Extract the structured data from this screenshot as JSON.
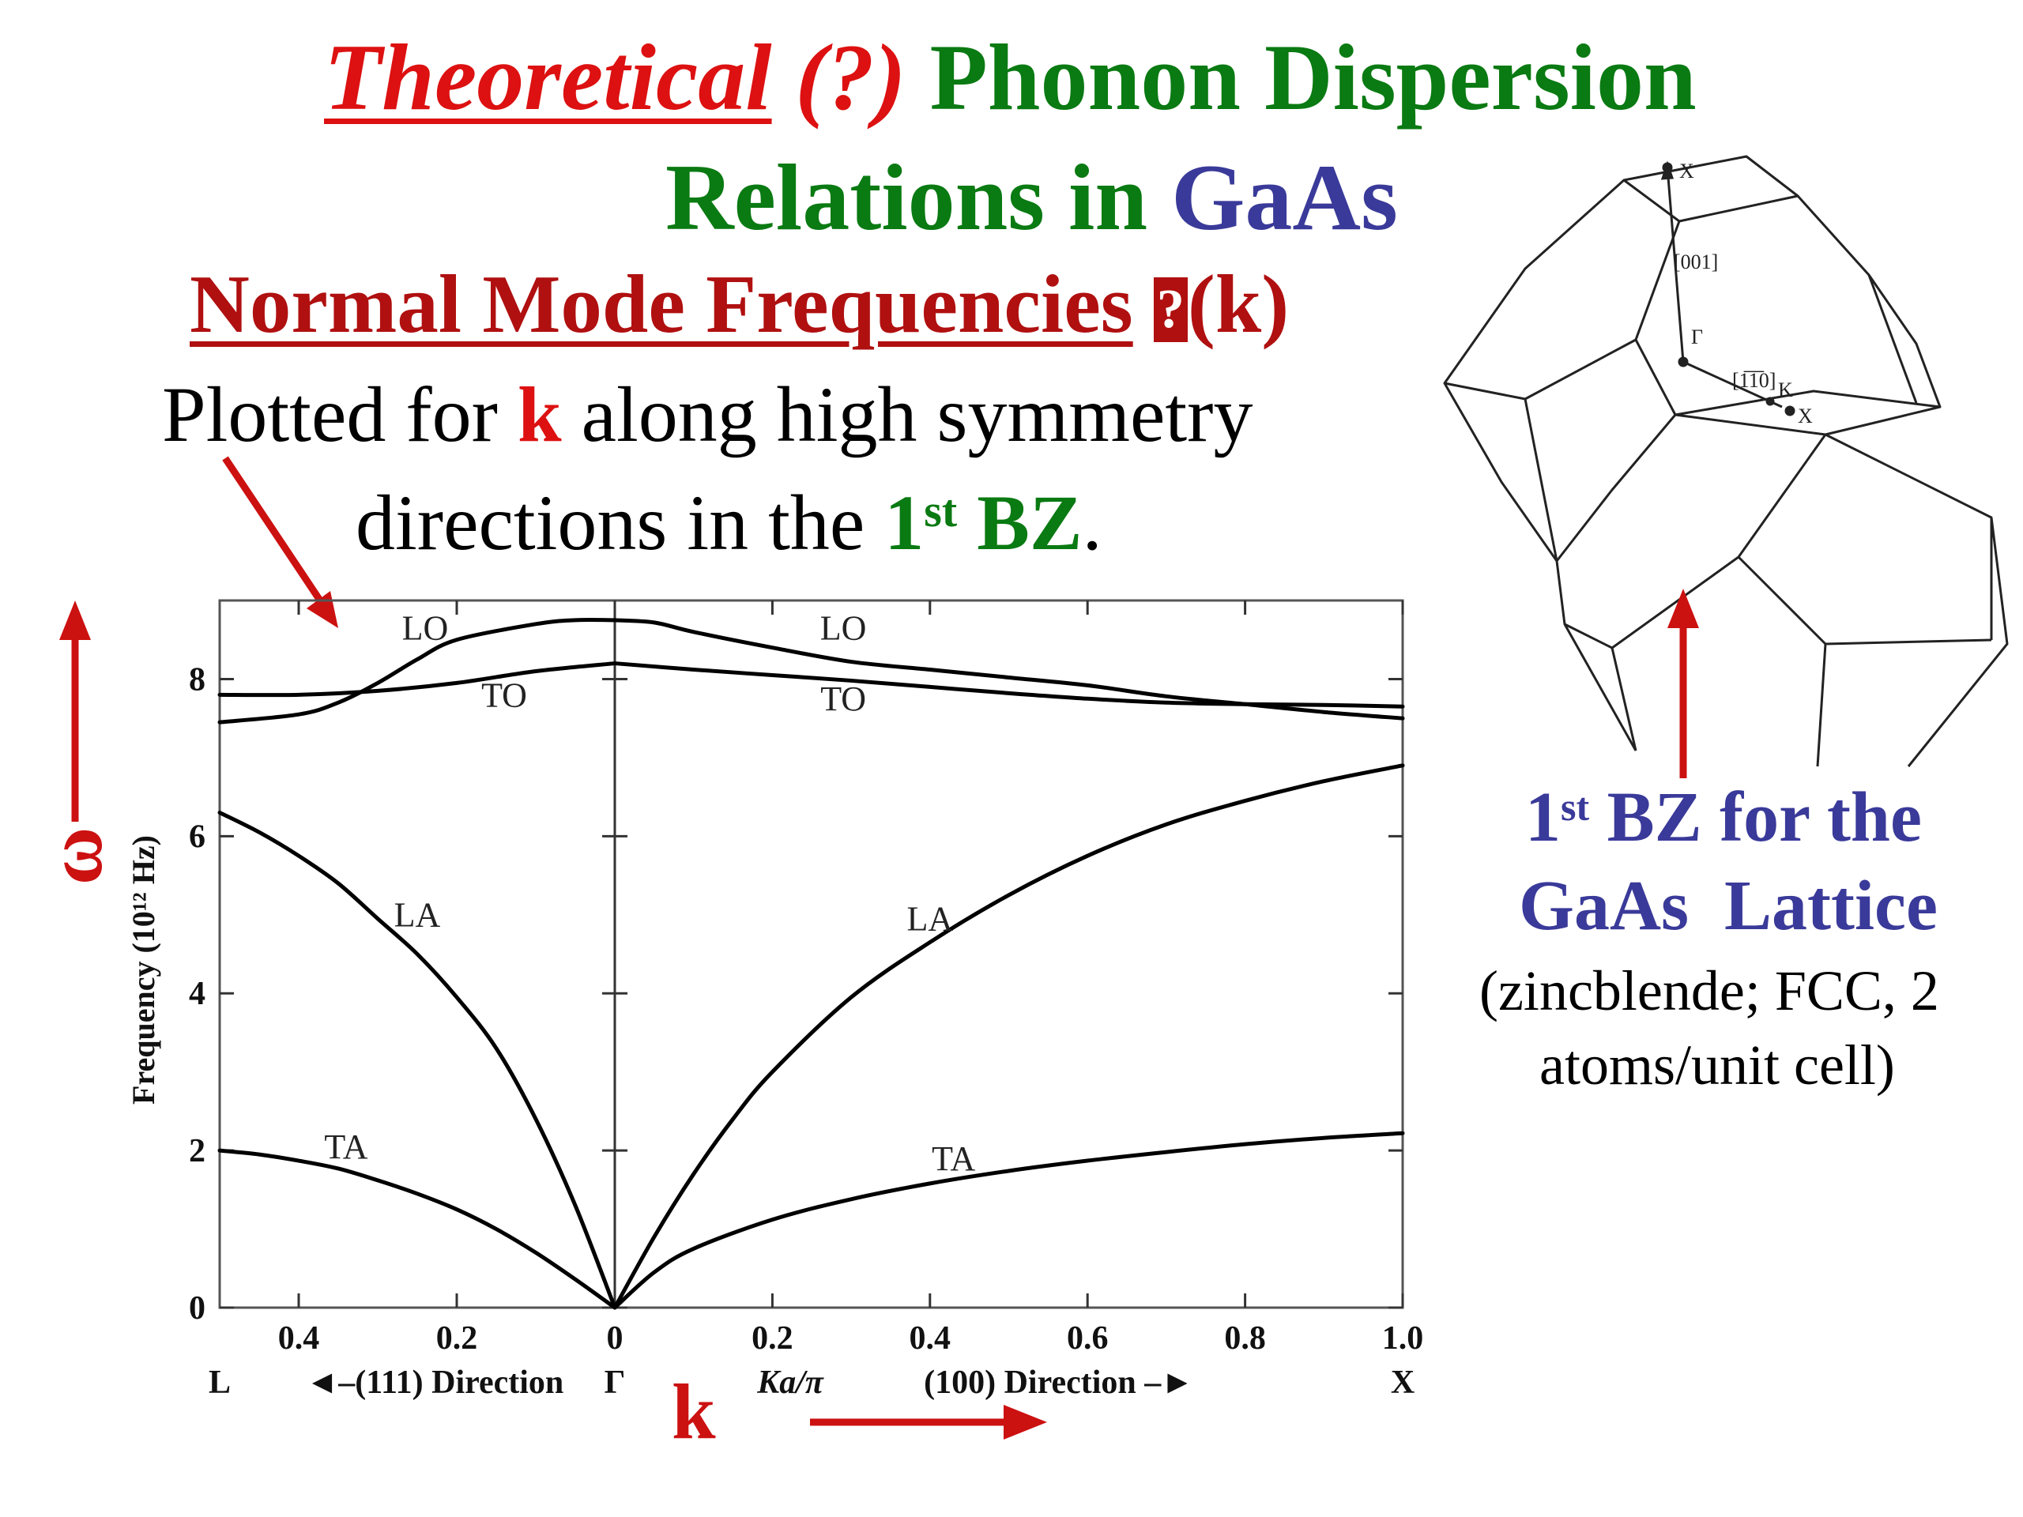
{
  "slide": {
    "title_theoretical": "Theoretical",
    "title_question": "(?)",
    "title_phonon": "Phonon Dispersion",
    "title_relations": "Relations in",
    "title_gaas": "GaAs",
    "subtitle_normal_mode": "Normal Mode Frequencies",
    "subtitle_glyph": "?",
    "subtitle_k": "(k)",
    "plotted_prefix": "Plotted for",
    "plotted_k": "k",
    "plotted_suffix": "along high symmetry",
    "directions_prefix": "directions in the",
    "directions_1": "1",
    "directions_st": "st",
    "directions_bz": "BZ",
    "directions_period": ".",
    "omega_label": "ω",
    "k_label": "k"
  },
  "bz_caption": {
    "line1_1": "1",
    "line1_st": "st",
    "line1_rest": "BZ for the",
    "line2": "GaAs  Lattice",
    "line3": "(zincblende; FCC, 2",
    "line4": "atoms/unit cell)"
  },
  "bz_diagram": {
    "label_x_top": "X",
    "label_001": "[001]",
    "label_gamma": "Γ",
    "label_110": "[1̅1̅0]",
    "label_k": "K",
    "label_x_right": "X"
  },
  "chart_data": {
    "type": "line",
    "title": "",
    "ylabel": "Frequency  (10¹² Hz)",
    "ylim": [
      0,
      9
    ],
    "yticks": [
      0,
      2,
      4,
      6,
      8
    ],
    "left_panel": {
      "direction_label": "◄–(111) Direction",
      "start_point": "L",
      "end_point": "Γ",
      "xlim": [
        0.5,
        0
      ],
      "xticks": [
        0.4,
        0.2,
        0
      ],
      "series": [
        {
          "name": "LO",
          "x": [
            0.5,
            0.4,
            0.35,
            0.3,
            0.25,
            0.2,
            0.1,
            0.05,
            0
          ],
          "y": [
            7.45,
            7.55,
            7.7,
            7.95,
            8.25,
            8.5,
            8.7,
            8.75,
            8.75
          ]
        },
        {
          "name": "TO",
          "x": [
            0.5,
            0.4,
            0.3,
            0.2,
            0.1,
            0
          ],
          "y": [
            7.8,
            7.8,
            7.85,
            7.95,
            8.1,
            8.2
          ]
        },
        {
          "name": "LA",
          "x": [
            0.5,
            0.45,
            0.4,
            0.35,
            0.3,
            0.25,
            0.2,
            0.15,
            0.1,
            0.05,
            0
          ],
          "y": [
            6.3,
            6.05,
            5.75,
            5.4,
            4.95,
            4.5,
            3.95,
            3.3,
            2.4,
            1.3,
            0
          ]
        },
        {
          "name": "TA",
          "x": [
            0.5,
            0.45,
            0.4,
            0.35,
            0.3,
            0.25,
            0.2,
            0.15,
            0.1,
            0.05,
            0
          ],
          "y": [
            2.0,
            1.95,
            1.87,
            1.77,
            1.62,
            1.45,
            1.25,
            1.0,
            0.7,
            0.36,
            0
          ]
        }
      ],
      "annotations": [
        {
          "text": "LO",
          "x": 0.24,
          "y": 8.5
        },
        {
          "text": "TO",
          "x": 0.14,
          "y": 7.65
        },
        {
          "text": "LA",
          "x": 0.25,
          "y": 4.85
        },
        {
          "text": "TA",
          "x": 0.34,
          "y": 1.9
        }
      ]
    },
    "right_panel": {
      "direction_label": "(100) Direction –►",
      "start_point": "Γ",
      "end_point": "X",
      "xlabel": "Ka/π",
      "xlim": [
        0,
        1.0
      ],
      "xticks": [
        0,
        0.2,
        0.4,
        0.6,
        0.8,
        1.0
      ],
      "series": [
        {
          "name": "LO",
          "x": [
            0,
            0.05,
            0.1,
            0.2,
            0.3,
            0.4,
            0.5,
            0.6,
            0.7,
            0.8,
            0.9,
            1.0
          ],
          "y": [
            8.75,
            8.72,
            8.6,
            8.4,
            8.22,
            8.12,
            8.02,
            7.92,
            7.78,
            7.68,
            7.58,
            7.5
          ]
        },
        {
          "name": "TO",
          "x": [
            0,
            0.1,
            0.2,
            0.3,
            0.4,
            0.5,
            0.6,
            0.7,
            0.8,
            0.9,
            1.0
          ],
          "y": [
            8.2,
            8.12,
            8.05,
            7.98,
            7.9,
            7.82,
            7.75,
            7.7,
            7.68,
            7.67,
            7.65
          ]
        },
        {
          "name": "LA",
          "x": [
            0,
            0.05,
            0.1,
            0.15,
            0.2,
            0.3,
            0.4,
            0.5,
            0.6,
            0.7,
            0.8,
            0.9,
            1.0
          ],
          "y": [
            0,
            0.9,
            1.7,
            2.4,
            3.0,
            3.95,
            4.65,
            5.25,
            5.75,
            6.15,
            6.45,
            6.7,
            6.9
          ]
        },
        {
          "name": "TA",
          "x": [
            0,
            0.05,
            0.1,
            0.2,
            0.3,
            0.4,
            0.5,
            0.6,
            0.7,
            0.8,
            0.9,
            1.0
          ],
          "y": [
            0,
            0.45,
            0.75,
            1.12,
            1.38,
            1.58,
            1.74,
            1.87,
            1.98,
            2.08,
            2.16,
            2.22
          ]
        }
      ],
      "annotations": [
        {
          "text": "LO",
          "x": 0.29,
          "y": 8.5
        },
        {
          "text": "TO",
          "x": 0.29,
          "y": 7.6
        },
        {
          "text": "LA",
          "x": 0.4,
          "y": 4.8
        },
        {
          "text": "TA",
          "x": 0.43,
          "y": 1.75
        }
      ]
    },
    "colors": {
      "curves": "#000000",
      "arrows": "#cc1111"
    }
  }
}
